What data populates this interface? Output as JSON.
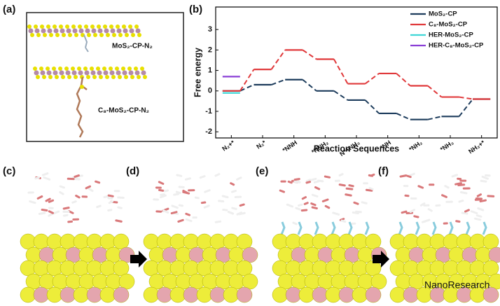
{
  "panel_labels": [
    "(a)",
    "(b)",
    "(c)",
    "(d)",
    "(e)",
    "(f)"
  ],
  "structure_labels": [
    "MoS₂-CP-N₂",
    "C₈-MoS₂-CP-N₂"
  ],
  "watermark": "NanoResearch",
  "chart_data": {
    "type": "energy_profile",
    "xlabel": "Reaction Sequences",
    "ylabel": "Free energy",
    "categories": [
      "N₂+*",
      "N₂*",
      "*NNH",
      "*NNH₂",
      "N*+NH₃",
      "*NH",
      "*NH₂",
      "*NH₃",
      "NH₃+*"
    ],
    "ylim": [
      -2.3,
      4.1
    ],
    "yticks": [
      -2,
      -1,
      0,
      1,
      2,
      3
    ],
    "legend": "upper right",
    "series": [
      {
        "name": "MoS₂-CP",
        "color": "#1d3c5c",
        "values": [
          0,
          0.3,
          0.55,
          0.0,
          -0.45,
          -1.1,
          -1.4,
          -1.25,
          -0.4
        ]
      },
      {
        "name": "C₈-MoS₂-CP",
        "color": "#e0393b",
        "values": [
          0,
          1.05,
          2.0,
          1.55,
          0.35,
          0.85,
          0.25,
          -0.3,
          -0.4
        ]
      },
      {
        "name": "HER-MoS₂-CP",
        "color": "#3fd6d6",
        "values": [
          -0.1,
          null,
          null,
          null,
          null,
          null,
          null,
          null,
          null
        ]
      },
      {
        "name": "HER-C₈-MoS₂-CP",
        "color": "#8a3fd6",
        "values": [
          0.7,
          null,
          null,
          null,
          null,
          null,
          null,
          null,
          null
        ]
      }
    ]
  }
}
